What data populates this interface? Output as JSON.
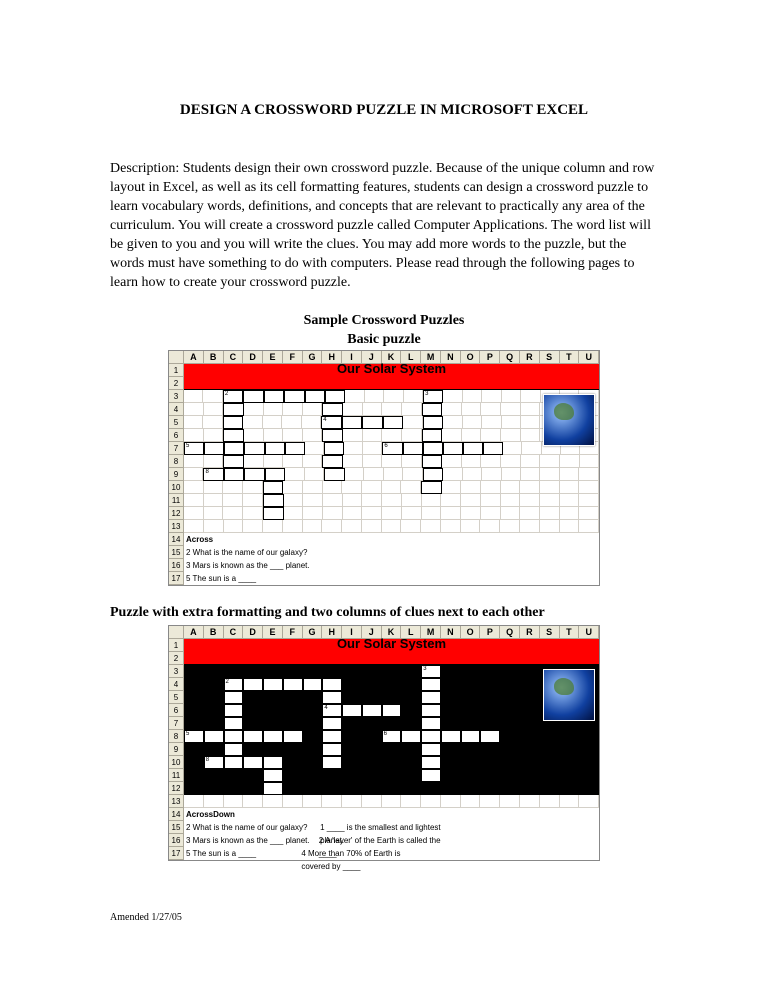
{
  "title": "DESIGN A CROSSWORD PUZZLE IN MICROSOFT EXCEL",
  "description": "Description: Students design their own crossword puzzle. Because of the unique column and row layout in Excel, as well as its cell formatting features, students can design a crossword puzzle to learn vocabulary words, definitions, and concepts that are relevant to practically any area of the curriculum.  You will create a crossword puzzle called Computer Applications.  The word list will be given to you and you will write the clues. You may add more words to the puzzle, but the words must have something to do with computers.  Please read through the following pages to learn how to create your crossword puzzle.",
  "sample_heading": "Sample Crossword Puzzles",
  "basic_heading": "Basic puzzle",
  "extra_heading": "Puzzle with extra formatting and two columns of clues next to each other",
  "columns": [
    "A",
    "B",
    "C",
    "D",
    "E",
    "F",
    "G",
    "H",
    "I",
    "J",
    "K",
    "L",
    "M",
    "N",
    "O",
    "P",
    "Q",
    "R",
    "S",
    "T",
    "U"
  ],
  "puzzle_title": "Our Solar System",
  "puzzle1": {
    "rows": 17,
    "boxes": [
      [
        3,
        2,
        6,
        1
      ],
      [
        3,
        12,
        1,
        1
      ],
      [
        4,
        2,
        1,
        1
      ],
      [
        4,
        7,
        1,
        1
      ],
      [
        4,
        12,
        1,
        1
      ],
      [
        5,
        2,
        1,
        1
      ],
      [
        5,
        7,
        4,
        1
      ],
      [
        5,
        12,
        1,
        1
      ],
      [
        6,
        2,
        1,
        1
      ],
      [
        6,
        7,
        1,
        1
      ],
      [
        6,
        12,
        1,
        1
      ],
      [
        7,
        0,
        6,
        1
      ],
      [
        7,
        7,
        1,
        1
      ],
      [
        7,
        10,
        6,
        1
      ],
      [
        8,
        2,
        1,
        1
      ],
      [
        8,
        7,
        1,
        1
      ],
      [
        8,
        12,
        1,
        1
      ],
      [
        9,
        1,
        4,
        1
      ],
      [
        9,
        7,
        1,
        1
      ],
      [
        9,
        12,
        1,
        1
      ],
      [
        10,
        4,
        1,
        1
      ],
      [
        10,
        12,
        1,
        1
      ],
      [
        11,
        4,
        1,
        1
      ],
      [
        12,
        4,
        1,
        1
      ]
    ],
    "nums": {
      "3,2": "2",
      "3,12": "3",
      "7,0": "5",
      "7,10": "6",
      "9,1": "8",
      "5,7": "4"
    }
  },
  "puzzle2": {
    "rows": 17,
    "black_area": [
      3,
      0,
      21,
      10
    ],
    "boxes": [
      [
        3,
        12,
        1,
        1
      ],
      [
        4,
        2,
        6,
        1
      ],
      [
        4,
        12,
        1,
        1
      ],
      [
        5,
        2,
        1,
        1
      ],
      [
        5,
        7,
        1,
        1
      ],
      [
        5,
        12,
        1,
        1
      ],
      [
        6,
        2,
        1,
        1
      ],
      [
        6,
        7,
        4,
        1
      ],
      [
        6,
        12,
        1,
        1
      ],
      [
        7,
        2,
        1,
        1
      ],
      [
        7,
        7,
        1,
        1
      ],
      [
        7,
        12,
        1,
        1
      ],
      [
        8,
        0,
        6,
        1
      ],
      [
        8,
        7,
        1,
        1
      ],
      [
        8,
        10,
        6,
        1
      ],
      [
        9,
        2,
        1,
        1
      ],
      [
        9,
        7,
        1,
        1
      ],
      [
        9,
        12,
        1,
        1
      ],
      [
        10,
        1,
        4,
        1
      ],
      [
        10,
        7,
        1,
        1
      ],
      [
        10,
        12,
        1,
        1
      ],
      [
        11,
        4,
        1,
        1
      ],
      [
        11,
        12,
        1,
        1
      ],
      [
        12,
        4,
        1,
        1
      ]
    ],
    "nums": {
      "3,12": "3",
      "4,2": "2",
      "6,7": "4",
      "8,0": "5",
      "8,10": "6",
      "10,1": "8"
    }
  },
  "across_label": "Across",
  "down_label": "Down",
  "across_clues": [
    "2   What is the name of our galaxy?",
    "3   Mars is known as the ___ planet.",
    "5   The sun is a ____"
  ],
  "down_clues": [
    "1   ____ is the smallest and lightest planet.",
    "2   A 'layer' of the Earth is called the ____",
    "4   More than 70% of Earth is covered by ____"
  ],
  "footer": "Amended 1/27/05",
  "colors": {
    "red": "#ff0000",
    "excel_header": "#ece9d8",
    "black": "#000000"
  }
}
